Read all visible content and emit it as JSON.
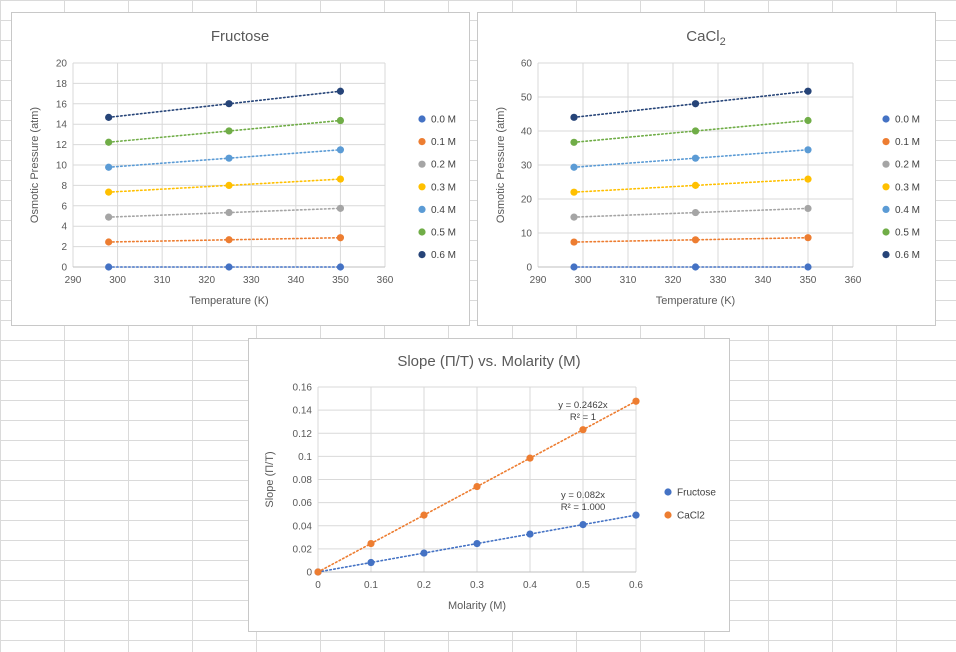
{
  "chart_data": [
    {
      "type": "scatter",
      "title": "Fructose",
      "xlabel": "Temperature (K)",
      "ylabel": "Osmotic Pressure (atm)",
      "xlim": [
        290,
        360
      ],
      "ylim": [
        0,
        20
      ],
      "x_ticks": [
        290,
        300,
        310,
        320,
        330,
        340,
        350,
        360
      ],
      "y_ticks": [
        0,
        2,
        4,
        6,
        8,
        10,
        12,
        14,
        16,
        18,
        20
      ],
      "x_gridlines": true,
      "y_gridlines": true,
      "trendline": "linear, dotted",
      "legend_position": "right",
      "x": [
        298,
        325,
        350
      ],
      "series": [
        {
          "name": "0.0 M",
          "color": "#4472C4",
          "values": [
            0,
            0,
            0
          ]
        },
        {
          "name": "0.1 M",
          "color": "#ED7D31",
          "values": [
            2.45,
            2.67,
            2.87
          ]
        },
        {
          "name": "0.2 M",
          "color": "#A5A5A5",
          "values": [
            4.89,
            5.34,
            5.75
          ]
        },
        {
          "name": "0.3 M",
          "color": "#FFC000",
          "values": [
            7.34,
            8.0,
            8.62
          ]
        },
        {
          "name": "0.4 M",
          "color": "#5B9BD5",
          "values": [
            9.78,
            10.67,
            11.49
          ]
        },
        {
          "name": "0.5 M",
          "color": "#70AD47",
          "values": [
            12.23,
            13.34,
            14.36
          ]
        },
        {
          "name": "0.6 M",
          "color": "#264478",
          "values": [
            14.67,
            16.01,
            17.23
          ]
        }
      ]
    },
    {
      "type": "scatter",
      "title_main": "CaCl",
      "title_sub": "2",
      "xlabel": "Temperature (K)",
      "ylabel": "Osmotic Pressure (atm)",
      "xlim": [
        290,
        360
      ],
      "ylim": [
        0,
        60
      ],
      "x_ticks": [
        290,
        300,
        310,
        320,
        330,
        340,
        350,
        360
      ],
      "y_ticks": [
        0,
        10,
        20,
        30,
        40,
        50,
        60
      ],
      "x_gridlines": true,
      "y_gridlines": true,
      "trendline": "linear, dotted",
      "legend_position": "right",
      "x": [
        298,
        325,
        350
      ],
      "series": [
        {
          "name": "0.0 M",
          "color": "#4472C4",
          "values": [
            0,
            0,
            0
          ]
        },
        {
          "name": "0.1 M",
          "color": "#ED7D31",
          "values": [
            7.34,
            8.0,
            8.62
          ]
        },
        {
          "name": "0.2 M",
          "color": "#A5A5A5",
          "values": [
            14.67,
            16.01,
            17.23
          ]
        },
        {
          "name": "0.3 M",
          "color": "#FFC000",
          "values": [
            22.01,
            24.01,
            25.85
          ]
        },
        {
          "name": "0.4 M",
          "color": "#5B9BD5",
          "values": [
            29.34,
            32.01,
            34.47
          ]
        },
        {
          "name": "0.5 M",
          "color": "#70AD47",
          "values": [
            36.68,
            40.02,
            43.09
          ]
        },
        {
          "name": "0.6 M",
          "color": "#264478",
          "values": [
            44.02,
            48.02,
            51.7
          ]
        }
      ]
    },
    {
      "type": "scatter",
      "title": "Slope (Π/T) vs. Molarity (M)",
      "xlabel": "Molarity (M)",
      "ylabel": "Slope (Π/T)",
      "xlim": [
        0,
        0.6
      ],
      "ylim": [
        0,
        0.16
      ],
      "x_ticks": [
        "0",
        "0.1",
        "0.2",
        "0.3",
        "0.4",
        "0.5",
        "0.6"
      ],
      "y_ticks": [
        "0",
        "0.02",
        "0.04",
        "0.06",
        "0.08",
        "0.1",
        "0.12",
        "0.14",
        "0.16"
      ],
      "x_gridlines": true,
      "y_gridlines": true,
      "trendline": "linear, dotted",
      "legend_position": "right",
      "x": [
        0,
        0.1,
        0.2,
        0.3,
        0.4,
        0.5,
        0.6
      ],
      "series": [
        {
          "name": "Fructose",
          "color": "#4472C4",
          "values": [
            0,
            0.0082,
            0.0164,
            0.0246,
            0.0328,
            0.041,
            0.0492
          ]
        },
        {
          "name": "CaCl2",
          "color": "#ED7D31",
          "values": [
            0,
            0.0246,
            0.0492,
            0.0739,
            0.0985,
            0.1231,
            0.1477
          ]
        }
      ],
      "annotations": [
        {
          "line1": "y = 0.2462x",
          "line2": "R² = 1",
          "x": 0.5,
          "y": 0.142
        },
        {
          "line1": "y = 0.082x",
          "line2": "R² = 1.000",
          "x": 0.5,
          "y": 0.064
        }
      ]
    }
  ]
}
